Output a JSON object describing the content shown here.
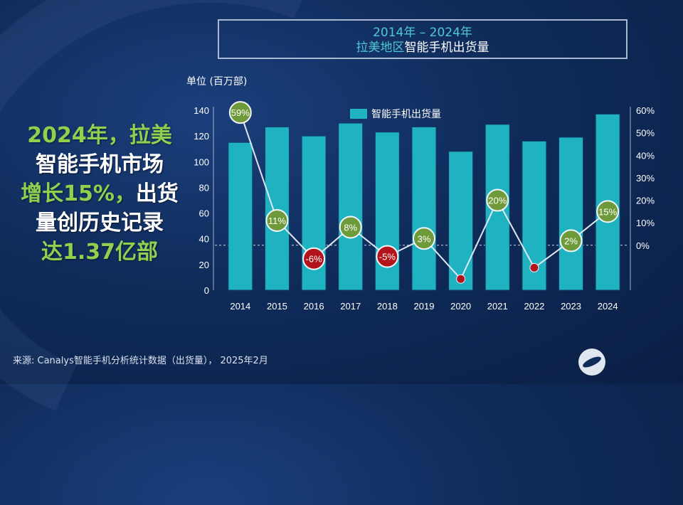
{
  "title_line1": "2014年 – 2024年",
  "title_line2_accent": "拉美地区",
  "title_line2_rest": "智能手机出货量",
  "unit_label": "单位 (百万部)",
  "headline": {
    "line1": "2024年，拉美",
    "line2": "智能手机市场",
    "line3_accent": "增长15%，",
    "line3_rest": "出货",
    "line4": "量创历史记录",
    "line5": "达1.37亿部"
  },
  "source": "来源: Canalys智能手机分析统计数据（出货量）， 2025年2月",
  "colors": {
    "bar": "#1fb3c2",
    "line": "#dfe7f2",
    "positive_badge": "#6f9a3a",
    "negative_badge": "#b3141b",
    "accent": "#4fc7d6"
  },
  "chart_data": {
    "type": "bar",
    "categories": [
      "2014",
      "2015",
      "2016",
      "2017",
      "2018",
      "2019",
      "2020",
      "2021",
      "2022",
      "2023",
      "2024"
    ],
    "series": [
      {
        "name": "智能手机出货量",
        "type": "bar",
        "axis": "left",
        "values": [
          115,
          127,
          120,
          130,
          123,
          127,
          108,
          129,
          116,
          119,
          137
        ]
      },
      {
        "type": "line",
        "axis": "right",
        "values": [
          59,
          11,
          -6,
          8,
          -5,
          3,
          -15,
          20,
          -10,
          2,
          15
        ],
        "labels": [
          "59%",
          "11%",
          "-6%",
          "8%",
          "-5%",
          "3%",
          "",
          "20%",
          "",
          "2%",
          "15%"
        ]
      }
    ],
    "left_axis": {
      "ylim": [
        0,
        140
      ],
      "ticks": [
        0,
        20,
        40,
        60,
        80,
        100,
        120,
        140
      ]
    },
    "right_axis": {
      "ylim": [
        -20,
        60
      ],
      "ticks": [
        "0%",
        "10%",
        "20%",
        "30%",
        "40%",
        "50%",
        "60%"
      ]
    },
    "legend": "top-center",
    "grid": false
  }
}
